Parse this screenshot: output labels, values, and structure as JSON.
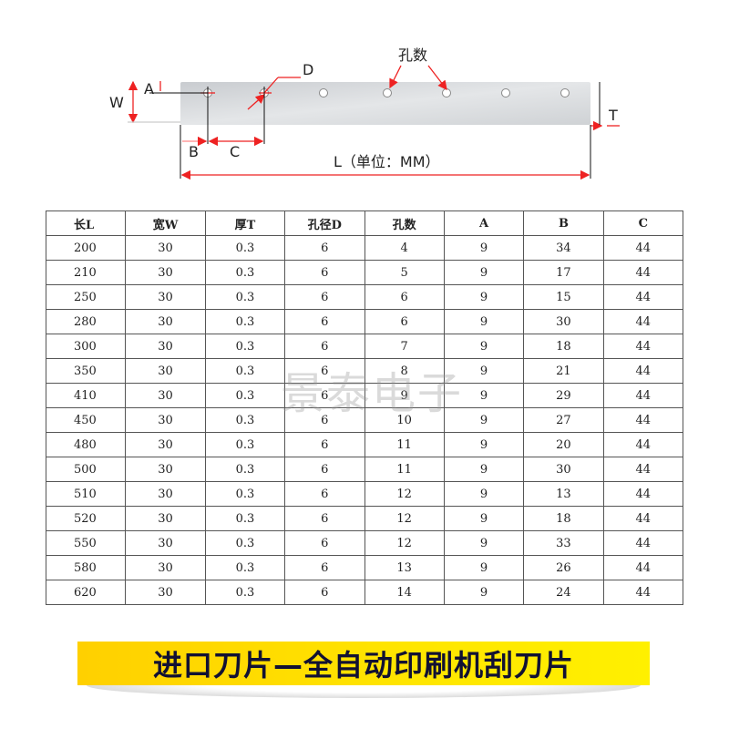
{
  "diagram": {
    "labels": {
      "w": "W",
      "a": "A",
      "d": "D",
      "holes": "孔数",
      "t": "T",
      "b": "B",
      "c": "C",
      "l": "L（单位：MM）"
    },
    "hole_count_shown": 7,
    "annotation_color": "#ee2222"
  },
  "table": {
    "headers": [
      "长L",
      "宽W",
      "厚T",
      "孔径D",
      "孔数",
      "A",
      "B",
      "C"
    ],
    "rows": [
      [
        "200",
        "30",
        "0.3",
        "6",
        "4",
        "9",
        "34",
        "44"
      ],
      [
        "210",
        "30",
        "0.3",
        "6",
        "5",
        "9",
        "17",
        "44"
      ],
      [
        "250",
        "30",
        "0.3",
        "6",
        "6",
        "9",
        "15",
        "44"
      ],
      [
        "280",
        "30",
        "0.3",
        "6",
        "6",
        "9",
        "30",
        "44"
      ],
      [
        "300",
        "30",
        "0.3",
        "6",
        "7",
        "9",
        "18",
        "44"
      ],
      [
        "350",
        "30",
        "0.3",
        "6",
        "8",
        "9",
        "21",
        "44"
      ],
      [
        "410",
        "30",
        "0.3",
        "6",
        "9",
        "9",
        "29",
        "44"
      ],
      [
        "450",
        "30",
        "0.3",
        "6",
        "10",
        "9",
        "27",
        "44"
      ],
      [
        "480",
        "30",
        "0.3",
        "6",
        "11",
        "9",
        "20",
        "44"
      ],
      [
        "500",
        "30",
        "0.3",
        "6",
        "11",
        "9",
        "30",
        "44"
      ],
      [
        "510",
        "30",
        "0.3",
        "6",
        "12",
        "9",
        "13",
        "44"
      ],
      [
        "520",
        "30",
        "0.3",
        "6",
        "12",
        "9",
        "18",
        "44"
      ],
      [
        "550",
        "30",
        "0.3",
        "6",
        "12",
        "9",
        "33",
        "44"
      ],
      [
        "580",
        "30",
        "0.3",
        "6",
        "13",
        "9",
        "26",
        "44"
      ],
      [
        "620",
        "30",
        "0.3",
        "6",
        "14",
        "9",
        "24",
        "44"
      ]
    ]
  },
  "watermark": "景泰电子",
  "banner": {
    "title": "进口刀片—全自动印刷机刮刀片",
    "color": "#ffd800"
  }
}
